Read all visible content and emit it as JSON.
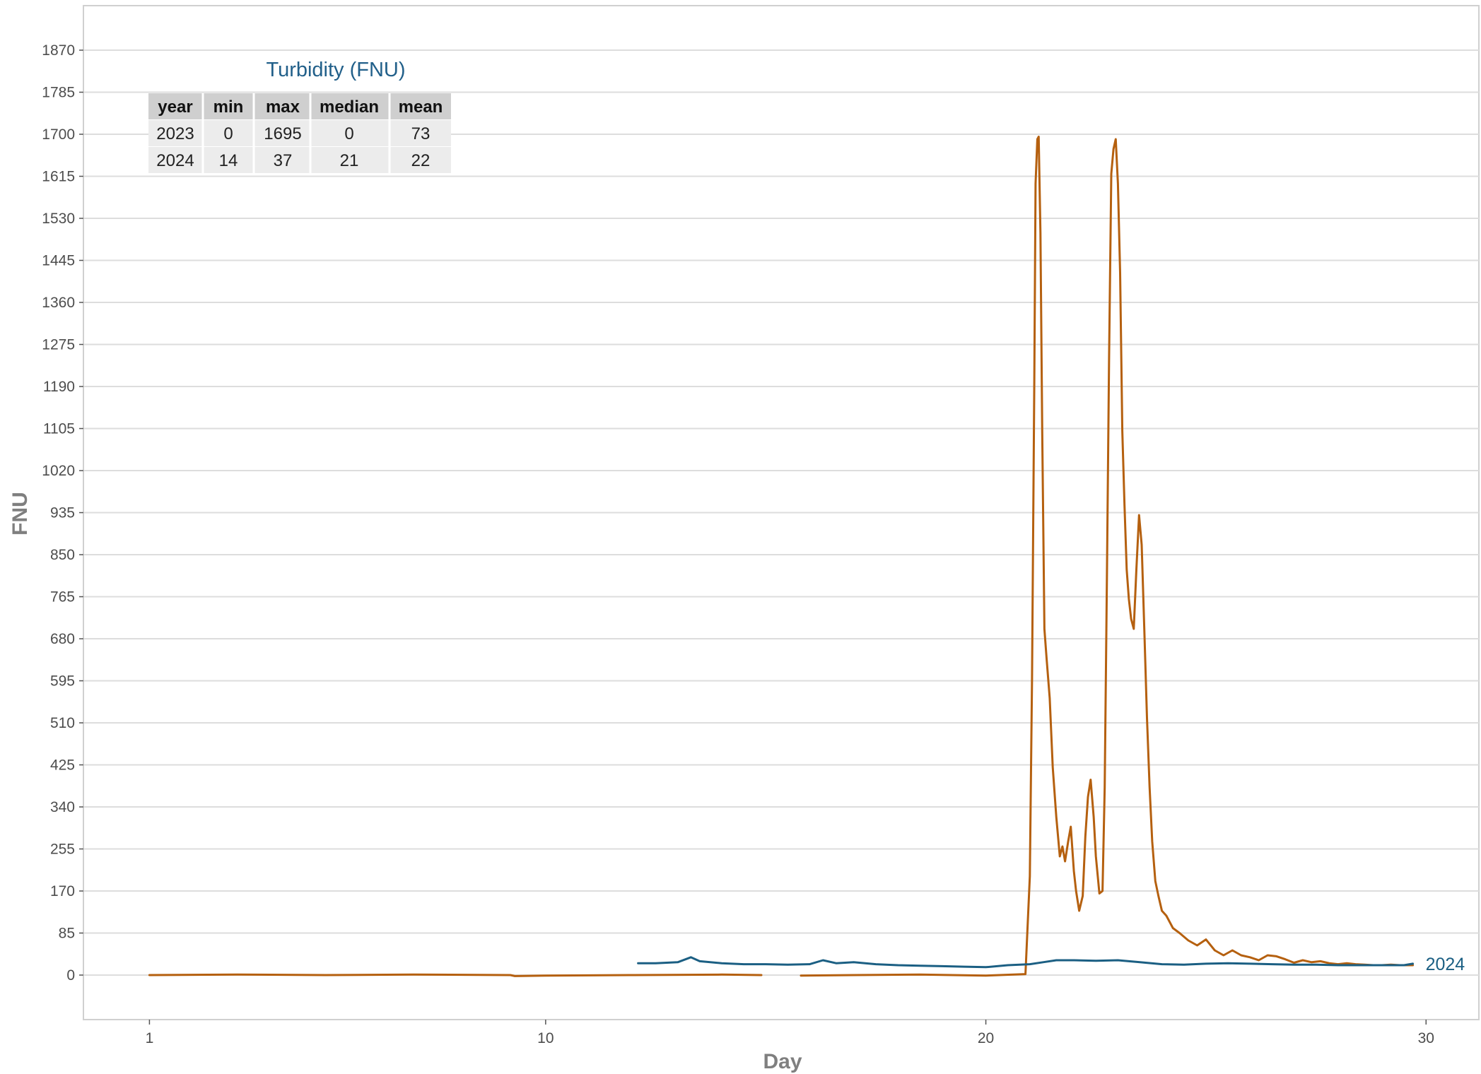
{
  "chart_data": {
    "type": "line",
    "title": "",
    "xlabel": "Day",
    "ylabel": "FNU",
    "xlim": [
      -0.5,
      31.2
    ],
    "ylim": [
      -90,
      1960
    ],
    "x_ticks": [
      1,
      10,
      20,
      30
    ],
    "y_ticks": [
      0,
      85,
      170,
      255,
      340,
      425,
      510,
      595,
      680,
      765,
      850,
      935,
      1020,
      1105,
      1190,
      1275,
      1360,
      1445,
      1530,
      1615,
      1700,
      1785,
      1870
    ],
    "grid": "horizontal",
    "legend": "none",
    "series": [
      {
        "name": "2023",
        "color": "#b5600f",
        "x": [
          1,
          3,
          5,
          7,
          9.2,
          9.3,
          10,
          12,
          14,
          14.9,
          null,
          15.8,
          17,
          18.5,
          20,
          20.9,
          21.0,
          21.05,
          21.1,
          21.13,
          21.17,
          21.2,
          21.24,
          21.28,
          21.33,
          21.38,
          21.45,
          21.52,
          21.6,
          21.68,
          21.74,
          21.8,
          21.87,
          21.93,
          22.0,
          22.05,
          22.12,
          22.2,
          22.26,
          22.32,
          22.38,
          22.45,
          22.5,
          22.58,
          22.65,
          22.7,
          22.75,
          22.8,
          22.85,
          22.9,
          22.95,
          23.0,
          23.05,
          23.1,
          23.15,
          23.2,
          23.25,
          23.3,
          23.36,
          23.42,
          23.48,
          23.54,
          23.6,
          23.66,
          23.72,
          23.78,
          23.85,
          23.92,
          24.0,
          24.1,
          24.25,
          24.4,
          24.6,
          24.8,
          25.0,
          25.2,
          25.4,
          25.6,
          25.8,
          26.0,
          26.2,
          26.4,
          26.6,
          26.8,
          27.0,
          27.2,
          27.4,
          27.6,
          27.8,
          28.0,
          28.2,
          28.4,
          28.6,
          28.8,
          29.0,
          29.2,
          29.4,
          29.7
        ],
        "values": [
          0,
          1,
          0,
          1,
          0,
          -2,
          -1,
          0,
          1,
          0,
          null,
          -1,
          0,
          1,
          -1,
          2,
          200,
          600,
          1200,
          1600,
          1690,
          1695,
          1500,
          1100,
          700,
          640,
          560,
          420,
          320,
          240,
          260,
          230,
          270,
          300,
          210,
          170,
          130,
          160,
          280,
          360,
          395,
          320,
          240,
          165,
          170,
          380,
          800,
          1250,
          1620,
          1670,
          1690,
          1600,
          1420,
          1100,
          950,
          820,
          760,
          720,
          700,
          820,
          930,
          870,
          700,
          520,
          380,
          270,
          190,
          160,
          130,
          120,
          95,
          85,
          70,
          60,
          72,
          50,
          40,
          50,
          40,
          36,
          30,
          40,
          38,
          32,
          25,
          30,
          26,
          28,
          24,
          22,
          24,
          22,
          21,
          20,
          20,
          21,
          20,
          20
        ]
      },
      {
        "name": "2024",
        "color": "#1b5f83",
        "x": [
          12.1,
          12.5,
          13.0,
          13.3,
          13.5,
          14.0,
          14.5,
          15.0,
          15.5,
          16.0,
          16.3,
          16.6,
          17.0,
          17.5,
          18.0,
          18.5,
          19.0,
          19.5,
          20.0,
          20.5,
          21.0,
          21.3,
          21.6,
          22.0,
          22.5,
          23.0,
          23.5,
          24.0,
          24.5,
          25.0,
          25.5,
          26.0,
          26.5,
          27.0,
          27.5,
          28.0,
          28.5,
          29.0,
          29.5,
          29.7
        ],
        "values": [
          24,
          24,
          26,
          36,
          28,
          24,
          22,
          22,
          21,
          22,
          30,
          24,
          26,
          22,
          20,
          19,
          18,
          17,
          16,
          20,
          22,
          26,
          30,
          30,
          29,
          30,
          26,
          22,
          21,
          23,
          24,
          23,
          22,
          21,
          21,
          20,
          20,
          20,
          20,
          23
        ]
      }
    ],
    "end_label": "2024",
    "summary_table": {
      "title": "Turbidity (FNU)",
      "columns": [
        "year",
        "min",
        "max",
        "median",
        "mean"
      ],
      "rows": [
        [
          "2023",
          "0",
          "1695",
          "0",
          "73"
        ],
        [
          "2024",
          "14",
          "37",
          "21",
          "22"
        ]
      ]
    }
  },
  "colors": {
    "grid": "#dddddd",
    "panel_border": "#d0d0d0",
    "series_2023": "#b5600f",
    "series_2024": "#1b5f83",
    "table_header_bg": "#cfcfcf",
    "table_row_bg": "#ececec"
  }
}
